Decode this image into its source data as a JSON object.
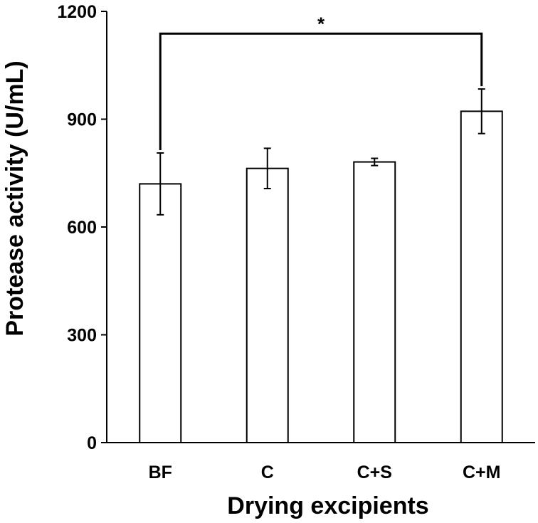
{
  "chart_data": {
    "type": "bar",
    "title": "",
    "xlabel": "Drying excipients",
    "ylabel": "Protease activity (U/mL)",
    "categories": [
      "BF",
      "C",
      "C+S",
      "C+M"
    ],
    "values": [
      720,
      763,
      781,
      922
    ],
    "errors": [
      86,
      56,
      10,
      62
    ],
    "ylim": [
      0,
      1200
    ],
    "yticks": [
      0,
      300,
      600,
      900,
      1200
    ],
    "ytick_labels": [
      "0",
      "300",
      "600",
      "900",
      "1200"
    ],
    "grid": false,
    "bar_fill": "#ffffff",
    "bar_stroke": "#000000",
    "significance": {
      "from": "BF",
      "to": "C+M",
      "label": "*",
      "level": 1138
    }
  }
}
